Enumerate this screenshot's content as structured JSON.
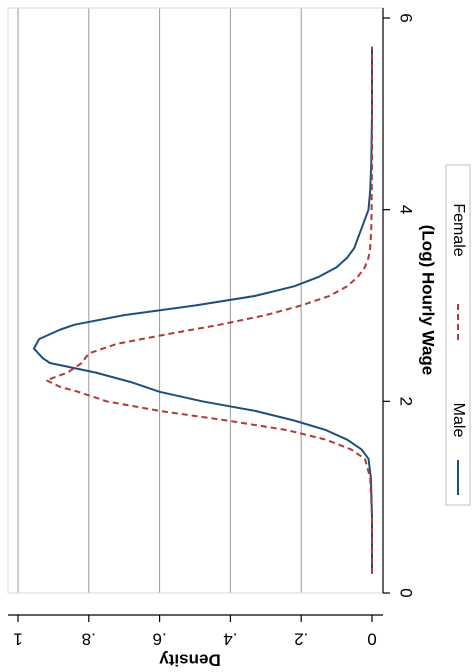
{
  "chart_data": {
    "type": "line",
    "orientation": "rotated-90-clockwise",
    "xlabel": "(Log) Hourly Wage",
    "ylabel": "Density",
    "xlim": [
      0,
      6
    ],
    "ylim": [
      0,
      1
    ],
    "x_ticks": [
      0,
      2,
      4,
      6
    ],
    "x_tick_labels": [
      "0",
      "2",
      "4",
      "6"
    ],
    "y_ticks": [
      0,
      0.2,
      0.4,
      0.6,
      0.8,
      1
    ],
    "y_tick_labels": [
      "0",
      ".2",
      ".4",
      ".6",
      ".8",
      "1"
    ],
    "grid": "horizontal",
    "legend_position": "bottom",
    "series": [
      {
        "name": "Male",
        "color": "#1f4e79",
        "style": "solid",
        "x": [
          0.2,
          0.8,
          1.2,
          1.4,
          1.5,
          1.6,
          1.7,
          1.8,
          1.9,
          2.0,
          2.1,
          2.2,
          2.3,
          2.4,
          2.45,
          2.55,
          2.65,
          2.75,
          2.8,
          2.9,
          3.0,
          3.1,
          3.2,
          3.3,
          3.4,
          3.5,
          3.6,
          3.7,
          3.8,
          3.9,
          4.0,
          4.2,
          4.5,
          5.0,
          5.5,
          5.7
        ],
        "values": [
          0.0,
          0.0,
          0.003,
          0.01,
          0.03,
          0.07,
          0.13,
          0.22,
          0.33,
          0.48,
          0.6,
          0.68,
          0.78,
          0.91,
          0.93,
          0.955,
          0.94,
          0.88,
          0.84,
          0.7,
          0.5,
          0.33,
          0.22,
          0.15,
          0.1,
          0.07,
          0.05,
          0.04,
          0.03,
          0.02,
          0.01,
          0.005,
          0.002,
          0.0,
          0.0,
          0.0
        ]
      },
      {
        "name": "Female",
        "color": "#b03a3a",
        "style": "dashed",
        "x": [
          0.2,
          0.8,
          1.2,
          1.4,
          1.5,
          1.6,
          1.7,
          1.8,
          1.9,
          2.0,
          2.1,
          2.15,
          2.22,
          2.3,
          2.4,
          2.5,
          2.6,
          2.7,
          2.8,
          2.9,
          3.0,
          3.1,
          3.2,
          3.3,
          3.4,
          3.5,
          3.6,
          3.8,
          4.0,
          4.5,
          5.0,
          5.7
        ],
        "values": [
          0.0,
          0.0,
          0.005,
          0.02,
          0.06,
          0.13,
          0.24,
          0.41,
          0.6,
          0.75,
          0.83,
          0.88,
          0.92,
          0.86,
          0.82,
          0.8,
          0.72,
          0.58,
          0.43,
          0.3,
          0.2,
          0.12,
          0.07,
          0.04,
          0.02,
          0.01,
          0.005,
          0.002,
          0.001,
          0.0,
          0.0,
          0.0
        ]
      }
    ]
  }
}
